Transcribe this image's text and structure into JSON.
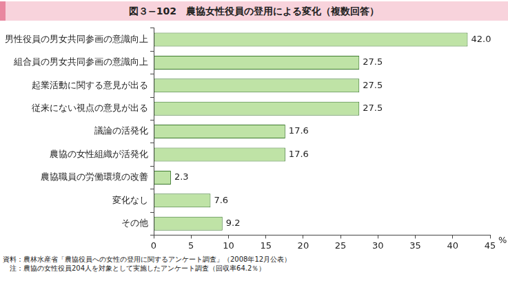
{
  "chart_data": {
    "type": "bar",
    "orientation": "horizontal",
    "title": "図３−102　農協女性役員の登用による変化（複数回答）",
    "categories": [
      "男性役員の男女共同参画の意識向上",
      "組合員の男女共同参画の意識向上",
      "起業活動に関する意見が出る",
      "従来にない視点の意見が出る",
      "議論の活発化",
      "農協の女性組織が活発化",
      "農協職員の労働環境の改善",
      "変化なし",
      "その他"
    ],
    "values": [
      42.0,
      27.5,
      27.5,
      27.5,
      17.6,
      17.6,
      2.3,
      7.6,
      9.2
    ],
    "value_labels": [
      "42.0",
      "27.5",
      "27.5",
      "27.5",
      "17.6",
      "17.6",
      "2.3",
      "7.6",
      "9.2"
    ],
    "data_labels": true,
    "color": "#bfe3a6",
    "xlabel": "%",
    "xlim": [
      0,
      45
    ],
    "xticks": [
      0,
      5,
      10,
      15,
      20,
      25,
      30,
      35,
      40,
      45
    ],
    "grid": false,
    "annotations": [
      "資料：農林水産省「農協役員への女性の登用に関するアンケート調査」（2008年12月公表）",
      "　注：農協の女性役員204人を対象として実施したアンケート調査（回収率64.2％）"
    ]
  }
}
